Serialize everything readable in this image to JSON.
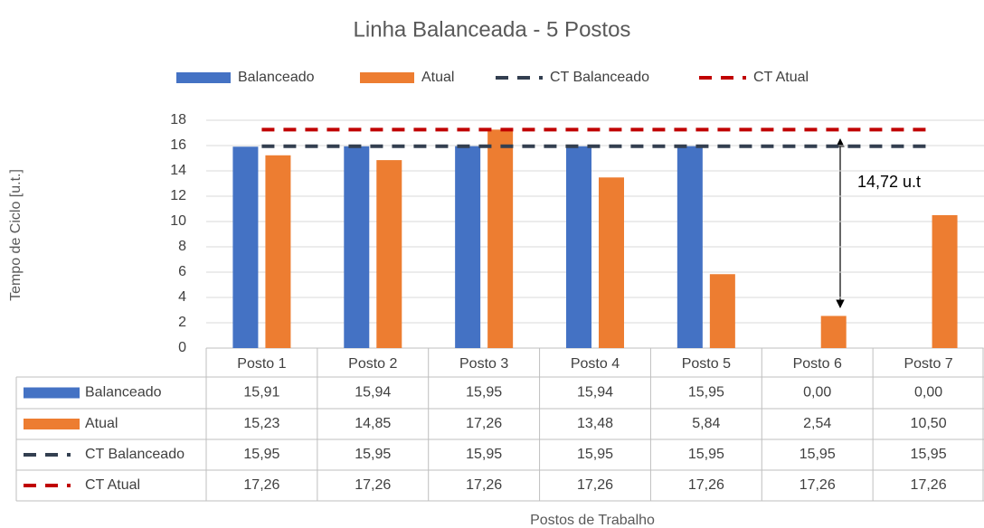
{
  "chart_data": {
    "type": "bar",
    "title": "Linha Balanceada - 5 Postos",
    "y_label": "Tempo de Ciclo [u.t.]",
    "x_label": "Postos de Trabalho",
    "annotation": "14,72 u.t",
    "categories": [
      "Posto 1",
      "Posto 2",
      "Posto 3",
      "Posto 4",
      "Posto 5",
      "Posto 6",
      "Posto 7"
    ],
    "series": [
      {
        "name": "Balanceado",
        "type": "bar",
        "color": "#4472c4",
        "values": [
          15.91,
          15.94,
          15.95,
          15.94,
          15.95,
          0,
          0
        ],
        "value_labels": [
          "15,91",
          "15,94",
          "15,95",
          "15,94",
          "15,95",
          "0,00",
          "0,00"
        ]
      },
      {
        "name": "Atual",
        "type": "bar",
        "color": "#ed7d31",
        "values": [
          15.23,
          14.85,
          17.26,
          13.48,
          5.84,
          2.54,
          10.5
        ],
        "value_labels": [
          "15,23",
          "14,85",
          "17,26",
          "13,48",
          "5,84",
          "2,54",
          "10,50"
        ]
      },
      {
        "name": "CT Balanceado",
        "type": "line",
        "dashed": true,
        "color": "#333f50",
        "values": [
          15.95,
          15.95,
          15.95,
          15.95,
          15.95,
          15.95,
          15.95
        ],
        "value_labels": [
          "15,95",
          "15,95",
          "15,95",
          "15,95",
          "15,95",
          "15,95",
          "15,95"
        ]
      },
      {
        "name": "CT Atual",
        "type": "line",
        "dashed": true,
        "color": "#c00000",
        "values": [
          17.26,
          17.26,
          17.26,
          17.26,
          17.26,
          17.26,
          17.26
        ],
        "value_labels": [
          "17,26",
          "17,26",
          "17,26",
          "17,26",
          "17,26",
          "17,26",
          "17,26"
        ]
      }
    ],
    "ylim": [
      0,
      18
    ],
    "yticks": [
      0,
      2,
      4,
      6,
      8,
      10,
      12,
      14,
      16,
      18
    ],
    "grid": true,
    "legend": "top",
    "data_table": true
  }
}
